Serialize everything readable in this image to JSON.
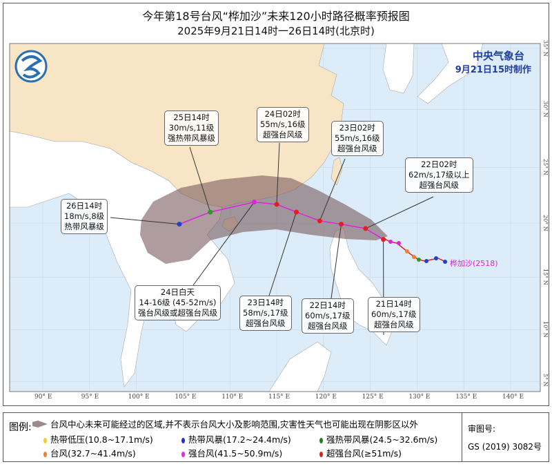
{
  "title": "今年第18号台风“桦加沙”未来120小时路径概率预报图",
  "subtitle": "2025年9月21日14时一26日14时(北京时)",
  "issuer": {
    "name": "中央气象台",
    "issued": "9月21日15时制作"
  },
  "typhoon_label": "桦加沙(2518)",
  "colors": {
    "land_china": "#f8e5c6",
    "land_other": "#ffffff",
    "sea": "#dcedf9",
    "cone": "#7a5a5e",
    "track": "#e020e0",
    "issuer": "#1f3ea3"
  },
  "axes": {
    "lon_ticks": [
      "90° E",
      "95° E",
      "100° E",
      "105° E",
      "110° E",
      "115° E",
      "120° E",
      "125° E",
      "130° E",
      "135° E",
      "140° E"
    ],
    "lat_ticks": [
      "35° N",
      "30° N",
      "25° N",
      "20° N",
      "15° N",
      "10° N",
      "5° N"
    ]
  },
  "forecast_points": [
    {
      "time": "21日14时",
      "speed": "60m/s,17级",
      "category": "超强台风级",
      "lon": 126.4,
      "lat": 18.5,
      "color": "#e02020"
    },
    {
      "time": "22日02时",
      "speed": "62m/s,17级以上",
      "category": "超强台风级",
      "lon": 124.5,
      "lat": 19.5,
      "color": "#e02020"
    },
    {
      "time": "22日14时",
      "speed": "60m/s,17级",
      "category": "超强台风级",
      "lon": 121.9,
      "lat": 19.9,
      "color": "#e02020"
    },
    {
      "time": "23日02时",
      "speed": "55m/s,16级",
      "category": "超强台风级",
      "lon": 119.6,
      "lat": 20.2,
      "color": "#e02020"
    },
    {
      "time": "23日14时",
      "speed": "58m/s,17级",
      "category": "超强台风级",
      "lon": 117.1,
      "lat": 21.0,
      "color": "#e02020"
    },
    {
      "time": "24日02时",
      "speed": "55m/s,16级",
      "category": "超强台风级",
      "lon": 115.0,
      "lat": 21.7,
      "color": "#e02020"
    },
    {
      "time": "24日白天",
      "speed": "14-16级 (45-52m/s)",
      "category": "强台风级或超强台风级",
      "lon": 112.6,
      "lat": 21.9,
      "color": "#e020e0"
    },
    {
      "time": "25日14时",
      "speed": "30m/s,11级",
      "category": "强热带风暴级",
      "lon": 107.9,
      "lat": 21.0,
      "color": "#2a9a2a"
    },
    {
      "time": "26日14时",
      "speed": "18m/s,8级",
      "category": "热带风暴级",
      "lon": 104.6,
      "lat": 19.9,
      "color": "#2040d0"
    }
  ],
  "legend": {
    "title": "图例:",
    "cone_text": "台风中心未来可能经过的区域,并不表示台风大小及影响范围,灾害性天气也可能出现在阴影区以外",
    "items": [
      {
        "label": "热带低压(10.8~17.1m/s)",
        "color": "#f0d020"
      },
      {
        "label": "热带风暴(17.2~24.4m/s)",
        "color": "#2030d0"
      },
      {
        "label": "强热带风暴(24.5~32.6m/s)",
        "color": "#208020"
      },
      {
        "label": "台风(32.7~41.4m/s)",
        "color": "#f08030"
      },
      {
        "label": "强台风(41.5~50.9m/s)",
        "color": "#f020f0"
      },
      {
        "label": "超强台风(≥51m/s)",
        "color": "#e02020"
      }
    ]
  },
  "approval": {
    "label": "审图号:",
    "number": "GS (2019) 3082号"
  }
}
